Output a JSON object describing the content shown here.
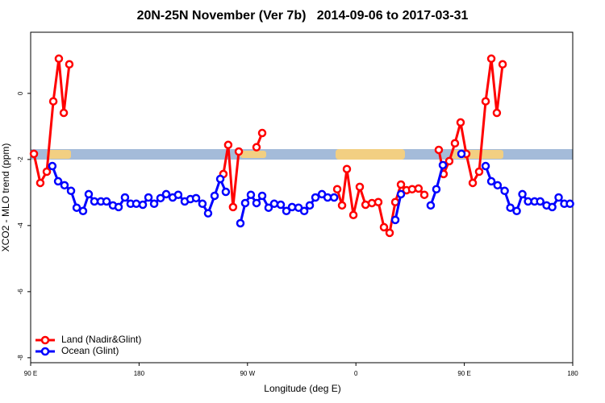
{
  "chart_data": {
    "type": "line",
    "title": "20N-25N November (Ver 7b)   2014-09-06 to 2017-03-31",
    "x_label": "Longitude (deg E)",
    "y_label": "XCO2 - MLO trend (ppm)",
    "xlim": [
      90,
      540
    ],
    "ylim": [
      -8.15,
      1.85
    ],
    "xticks": [
      {
        "value": 90,
        "label": "90 E"
      },
      {
        "value": 180,
        "label": "180"
      },
      {
        "value": 270,
        "label": "90 W"
      },
      {
        "value": 360,
        "label": "0"
      },
      {
        "value": 450,
        "label": "90 E"
      },
      {
        "value": 540,
        "label": "180"
      }
    ],
    "yticks": [
      0,
      -2,
      -4,
      -6,
      -8
    ],
    "legend": "bottom-left",
    "series": [
      {
        "name": "Land (Nadir&Glint)",
        "color": "#ff0000",
        "x": [
          92.7,
          98,
          103.4,
          108.8,
          113.4,
          117.5,
          122.1,
          null,
          250,
          254,
          258,
          262.8,
          null,
          277.5,
          282.2,
          null,
          344.5,
          348.5,
          352.5,
          357.9,
          363.2,
          368,
          373.3,
          378.6,
          383.3,
          388,
          392.7,
          397.4,
          402,
          406.7,
          412,
          416.8,
          null,
          428.8,
          432.8,
          437.5,
          442.2,
          446.9,
          451.6,
          457,
          462.3,
          467.7,
          472.4,
          477,
          481.8
        ],
        "values": [
          -1.83,
          -2.71,
          -2.37,
          -0.24,
          1.05,
          -0.59,
          0.88,
          null,
          -2.44,
          -1.56,
          -3.44,
          -1.76,
          null,
          -1.63,
          -1.2,
          null,
          -2.9,
          -3.39,
          -2.29,
          -3.68,
          -2.83,
          -3.37,
          -3.32,
          -3.29,
          -4.05,
          -4.22,
          -3.29,
          -2.76,
          -2.93,
          -2.9,
          -2.88,
          -3.07,
          null,
          -1.71,
          -2.44,
          -2.05,
          -1.51,
          -0.88,
          -1.83,
          -2.71,
          -2.37,
          -0.24,
          1.05,
          -0.59,
          0.88
        ]
      },
      {
        "name": "Ocean (Glint)",
        "color": "#0000ff",
        "x": [
          108,
          112.8,
          118.1,
          123.5,
          128.2,
          133.5,
          138.2,
          142.9,
          148.3,
          153,
          158.3,
          163,
          168.3,
          173,
          177.7,
          183.1,
          187.8,
          192.5,
          197.8,
          202.5,
          207.9,
          212.5,
          217.9,
          222.6,
          227.3,
          232.6,
          237.3,
          242.7,
          247.4,
          252,
          null,
          264.1,
          268.1,
          272.8,
          277.5,
          282.2,
          287.5,
          292.2,
          297.6,
          302.3,
          307,
          312.4,
          317.1,
          321.7,
          326.4,
          331.8,
          336.5,
          341.9,
          null,
          392.7,
          397.4,
          null,
          422.1,
          426.8,
          432.2,
          null,
          447.6,
          null,
          467.7,
          472.4,
          477.6,
          483.5,
          488.2,
          493.5,
          498.2,
          502.9,
          508.3,
          513,
          518.3,
          523,
          528.3,
          533,
          537.7
        ],
        "values": [
          -2.2,
          -2.66,
          -2.78,
          -2.95,
          -3.46,
          -3.56,
          -3.05,
          -3.27,
          -3.27,
          -3.27,
          -3.39,
          -3.44,
          -3.15,
          -3.34,
          -3.34,
          -3.37,
          -3.15,
          -3.34,
          -3.17,
          -3.05,
          -3.15,
          -3.07,
          -3.27,
          -3.2,
          -3.17,
          -3.34,
          -3.63,
          -3.1,
          -2.59,
          -2.98,
          null,
          -3.93,
          -3.32,
          -3.07,
          -3.32,
          -3.1,
          -3.46,
          -3.34,
          -3.37,
          -3.56,
          -3.44,
          -3.46,
          -3.56,
          -3.39,
          -3.15,
          -3.05,
          -3.15,
          -3.15,
          null,
          -3.83,
          -3.05,
          null,
          -3.39,
          -2.9,
          -2.17,
          null,
          -1.83,
          null,
          -2.2,
          -2.66,
          -2.78,
          -2.95,
          -3.46,
          -3.56,
          -3.05,
          -3.27,
          -3.27,
          -3.27,
          -3.39,
          -3.44,
          -3.15,
          -3.34,
          -3.34
        ]
      }
    ]
  }
}
